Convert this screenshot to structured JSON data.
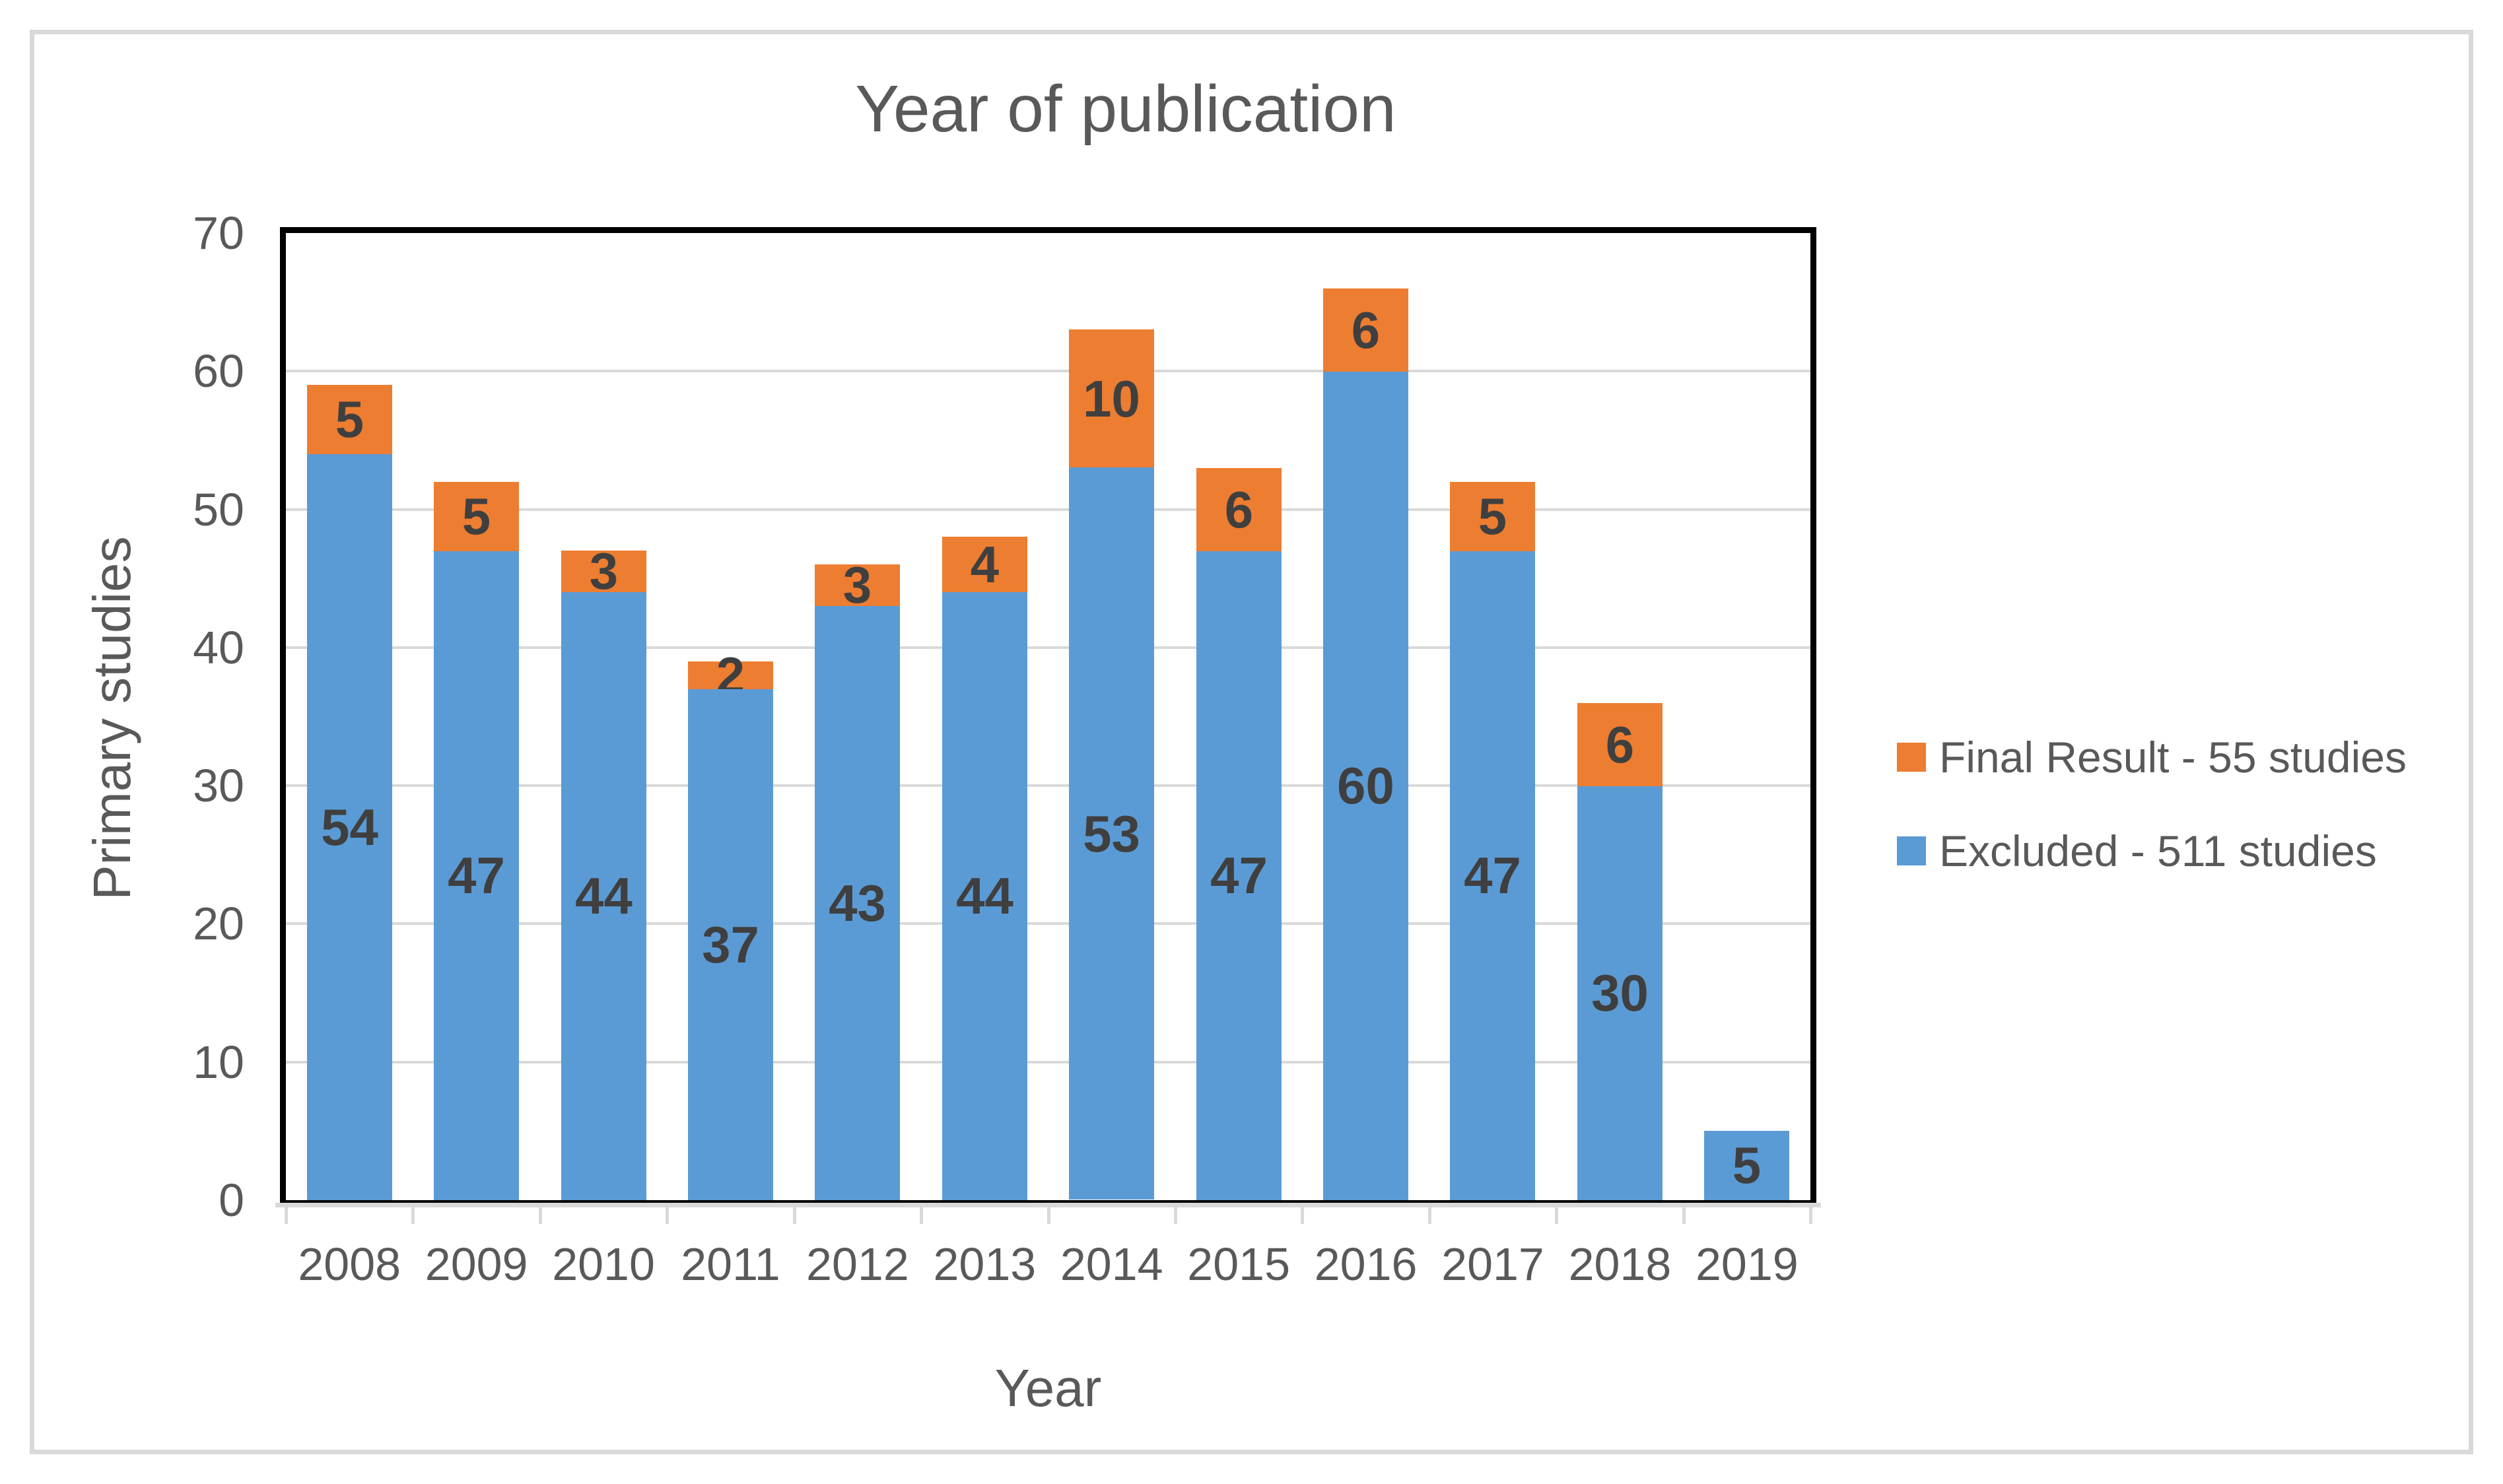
{
  "title": "Year of publication",
  "axes": {
    "x_title": "Year",
    "y_title": "Primary studies"
  },
  "legend": {
    "items": [
      {
        "label": "Final Result - 55 studies",
        "color": "#ED7D31",
        "series_key": "final"
      },
      {
        "label": "Excluded - 511 studies",
        "color": "#5B9BD5",
        "series_key": "excluded"
      }
    ]
  },
  "style": {
    "bar_label_color": "#3F3F3F",
    "axis_text_color": "#595959",
    "gridline_color": "#D9D9D9",
    "frame_color": "#D9D9D9",
    "plot_border_color": "#000000"
  },
  "chart_data": {
    "type": "bar",
    "stacked": true,
    "title": "Year of publication",
    "xlabel": "Year",
    "ylabel": "Primary studies",
    "categories": [
      "2008",
      "2009",
      "2010",
      "2011",
      "2012",
      "2013",
      "2014",
      "2015",
      "2016",
      "2017",
      "2018",
      "2019"
    ],
    "series": [
      {
        "name": "Excluded - 511 studies",
        "color": "#5B9BD5",
        "total": 511,
        "values": [
          54,
          47,
          44,
          37,
          43,
          44,
          53,
          47,
          60,
          47,
          30,
          5
        ]
      },
      {
        "name": "Final Result - 55 studies",
        "color": "#ED7D31",
        "total": 55,
        "values": [
          5,
          5,
          3,
          2,
          3,
          4,
          10,
          6,
          6,
          5,
          6,
          0
        ]
      }
    ],
    "stack_totals": [
      59,
      52,
      47,
      39,
      46,
      48,
      63,
      53,
      66,
      52,
      36,
      5
    ],
    "ylim": [
      0,
      70
    ],
    "ytick_step": 10,
    "yticks": [
      0,
      10,
      20,
      30,
      40,
      50,
      60,
      70
    ],
    "grid": true,
    "legend_position": "right",
    "data_labels": "center"
  }
}
